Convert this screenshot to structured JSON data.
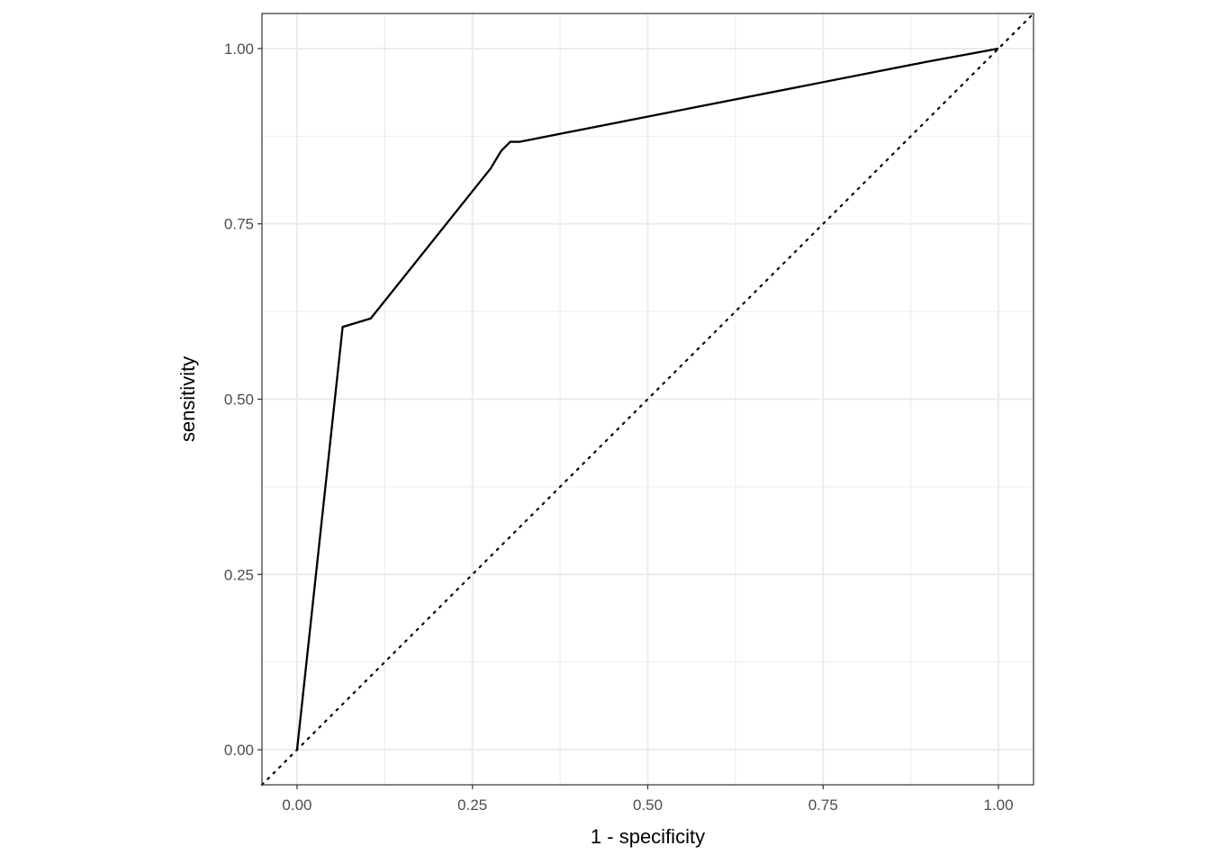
{
  "chart_data": {
    "type": "line",
    "title": "",
    "xlabel": "1 - specificity",
    "ylabel": "sensitivity",
    "xlim": [
      -0.05,
      1.05
    ],
    "ylim": [
      -0.05,
      1.05
    ],
    "x_ticks": [
      "0.00",
      "0.25",
      "0.50",
      "0.75",
      "1.00"
    ],
    "y_ticks": [
      "0.00",
      "0.25",
      "0.50",
      "0.75",
      "1.00"
    ],
    "grid": true,
    "series": [
      {
        "style": "solid",
        "color": "#000000",
        "x": [
          0,
          0.065,
          0.105,
          0.276,
          0.291,
          0.304,
          0.317,
          0.897,
          1.0
        ],
        "y": [
          0,
          0.603,
          0.615,
          0.829,
          0.854,
          0.867,
          0.867,
          0.981,
          1.0
        ]
      }
    ],
    "reference_line": {
      "style": "dotted",
      "color": "#000000",
      "slope": 1,
      "intercept": 0
    }
  }
}
